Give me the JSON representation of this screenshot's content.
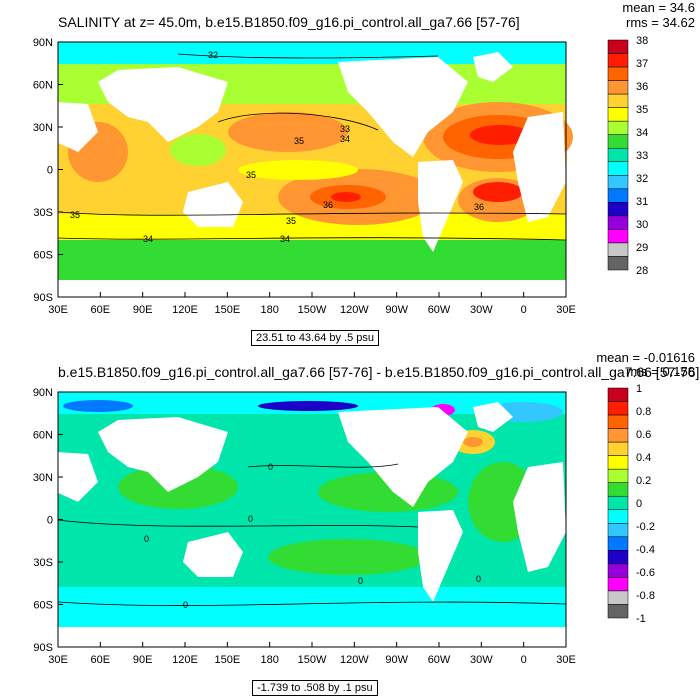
{
  "chart_data": [
    {
      "type": "heatmap",
      "title": "SALINITY at z=  45.0m, b.e15.B1850.f09_g16.pi_control.all_ga7.66 [57-76]",
      "stats": {
        "mean": "mean = 34.6",
        "rms": "rms = 34.62"
      },
      "x_ticks": [
        "30E",
        "60E",
        "90E",
        "120E",
        "150E",
        "180",
        "150W",
        "120W",
        "90W",
        "60W",
        "30W",
        "0",
        "30E"
      ],
      "y_ticks": [
        "90N",
        "60N",
        "30N",
        "0",
        "30S",
        "60S",
        "90S"
      ],
      "ylim": [
        -90,
        90
      ],
      "colorbar": {
        "labels": [
          "38",
          "37",
          "36",
          "35",
          "34",
          "33",
          "32",
          "31",
          "30",
          "29",
          "28"
        ],
        "colors": [
          "#c8001e",
          "#ff1e00",
          "#ff6400",
          "#ff9632",
          "#ffd232",
          "#ffff00",
          "#aaff32",
          "#32dc32",
          "#00e6aa",
          "#00ffff",
          "#32c8ff",
          "#0078ff",
          "#1e00c8",
          "#9600dc",
          "#ff00ff",
          "#c8c8c8",
          "#646464"
        ]
      },
      "contour_labels": [
        "32",
        "33",
        "34",
        "35",
        "35",
        "36",
        "35",
        "36",
        "35",
        "34",
        "34"
      ],
      "note": "23.51 to 43.64 by .5 psu"
    },
    {
      "type": "heatmap",
      "title": "b.e15.B1850.f09_g16.pi_control.all_ga7.66 [57-76] - b.e15.B1850.f09_g16.pi_control.all_ga7.66 [57-76]",
      "stats": {
        "mean": "mean = -0.01616",
        "rms": "rms = 0.158"
      },
      "x_ticks": [
        "30E",
        "60E",
        "90E",
        "120E",
        "150E",
        "180",
        "150W",
        "120W",
        "90W",
        "60W",
        "30W",
        "0",
        "30E"
      ],
      "y_ticks": [
        "90N",
        "60N",
        "30N",
        "0",
        "30S",
        "60S",
        "90S"
      ],
      "ylim": [
        -90,
        90
      ],
      "colorbar": {
        "labels": [
          "1",
          "0.8",
          "0.6",
          "0.4",
          "0.2",
          "0",
          "-0.2",
          "-0.4",
          "-0.6",
          "-0.8",
          "-1"
        ],
        "colors": [
          "#c8001e",
          "#ff1e00",
          "#ff6400",
          "#ff9632",
          "#ffd232",
          "#ffff00",
          "#aaff32",
          "#32dc32",
          "#00e6aa",
          "#00ffff",
          "#32c8ff",
          "#0078ff",
          "#1e00c8",
          "#9600dc",
          "#ff00ff",
          "#c8c8c8",
          "#646464"
        ]
      },
      "contour_labels": [
        "0",
        "0",
        "0",
        "0",
        "0",
        "0"
      ],
      "note": "-1.739 to .508 by .1 psu"
    }
  ]
}
